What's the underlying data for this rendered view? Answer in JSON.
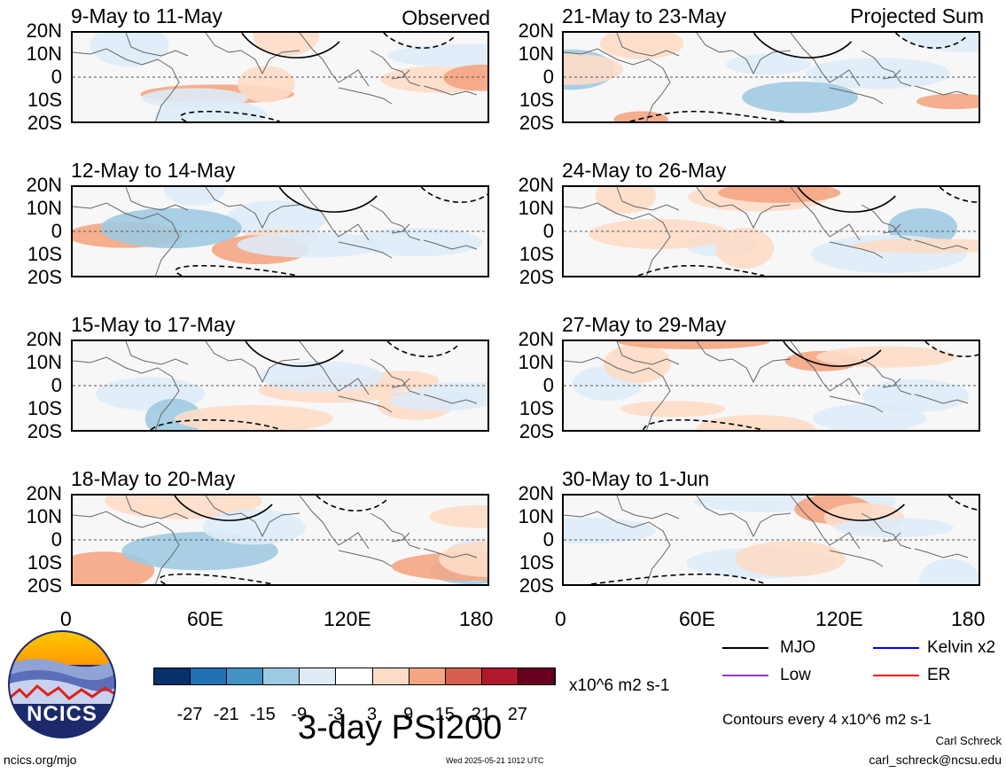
{
  "left_header": "Observed",
  "right_header": "Projected Sum",
  "panels_left": [
    "9-May to 11-May",
    "12-May to 14-May",
    "15-May to 17-May",
    "18-May to 20-May"
  ],
  "panels_right": [
    "21-May to 23-May",
    "24-May to 26-May",
    "27-May to 29-May",
    "30-May to 1-Jun"
  ],
  "lat_labels": [
    "20N",
    "10N",
    "0",
    "10S",
    "20S"
  ],
  "lon_labels": [
    "0",
    "60E",
    "120E",
    "180"
  ],
  "colorbar": {
    "colors": [
      "#08306b",
      "#2171b5",
      "#4292c6",
      "#9ecae1",
      "#deebf7",
      "#ffffff",
      "#fddbc7",
      "#f4a582",
      "#d6604d",
      "#b2182b",
      "#67001f"
    ],
    "labels": [
      "-27",
      "-21",
      "-15",
      "-9",
      "-3",
      "3",
      "9",
      "15",
      "21",
      "27"
    ],
    "units": "x10^6 m2 s-1"
  },
  "title": "3-day PSI200",
  "legend": {
    "mjo": "MJO",
    "kelvin": "Kelvin x2",
    "low": "Low",
    "er": "ER",
    "mjo_color": "#000000",
    "kelvin_color": "#0000ff",
    "low_color": "#9933cc",
    "er_color": "#ff0000"
  },
  "contour_note": "Contours every 4 x10^6 m2 s-1",
  "author": "Carl Schreck",
  "email": "carl_schreck@ncsu.edu",
  "site": "ncics.org/mjo",
  "timestamp": "Wed 2025-05-21 1012 UTC",
  "logo_text": "NCICS"
}
